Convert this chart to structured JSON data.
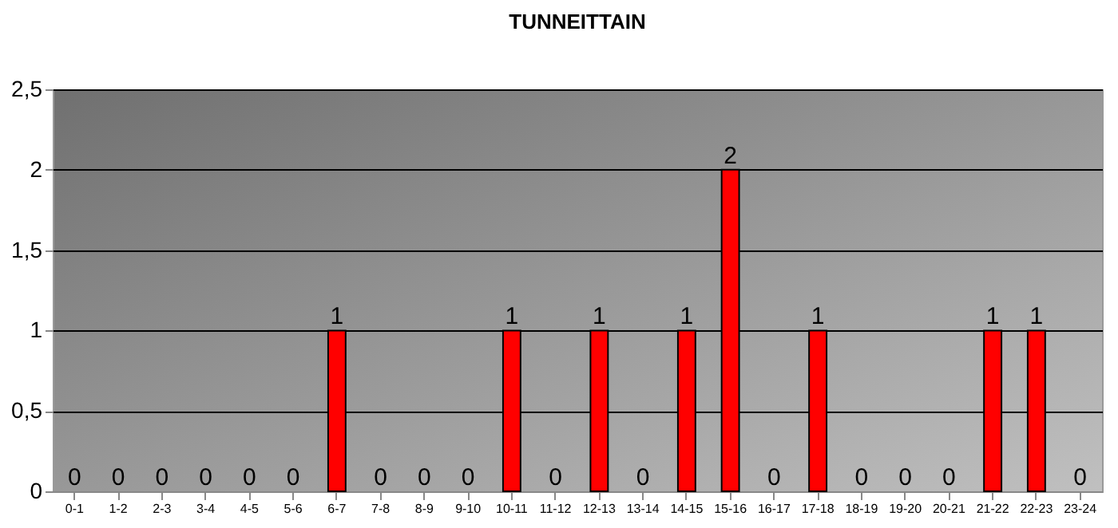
{
  "chart_data": {
    "type": "bar",
    "title": "TUNNEITTAIN",
    "categories": [
      "0-1",
      "1-2",
      "2-3",
      "3-4",
      "4-5",
      "5-6",
      "6-7",
      "7-8",
      "8-9",
      "9-10",
      "10-11",
      "11-12",
      "12-13",
      "13-14",
      "14-15",
      "15-16",
      "16-17",
      "17-18",
      "18-19",
      "19-20",
      "20-21",
      "21-22",
      "22-23",
      "23-24"
    ],
    "values": [
      0,
      0,
      0,
      0,
      0,
      0,
      1,
      0,
      0,
      0,
      1,
      0,
      1,
      0,
      1,
      2,
      0,
      1,
      0,
      0,
      0,
      1,
      1,
      0
    ],
    "color": "#ff0000",
    "ylim": [
      0,
      2.5
    ],
    "yticks": [
      0,
      {
        "value": 0.5,
        "label": "0,5"
      },
      1,
      {
        "value": 1.5,
        "label": "1,5"
      },
      2,
      {
        "value": 2.5,
        "label": "2,5"
      }
    ],
    "grid": "y",
    "data_labels": true
  }
}
